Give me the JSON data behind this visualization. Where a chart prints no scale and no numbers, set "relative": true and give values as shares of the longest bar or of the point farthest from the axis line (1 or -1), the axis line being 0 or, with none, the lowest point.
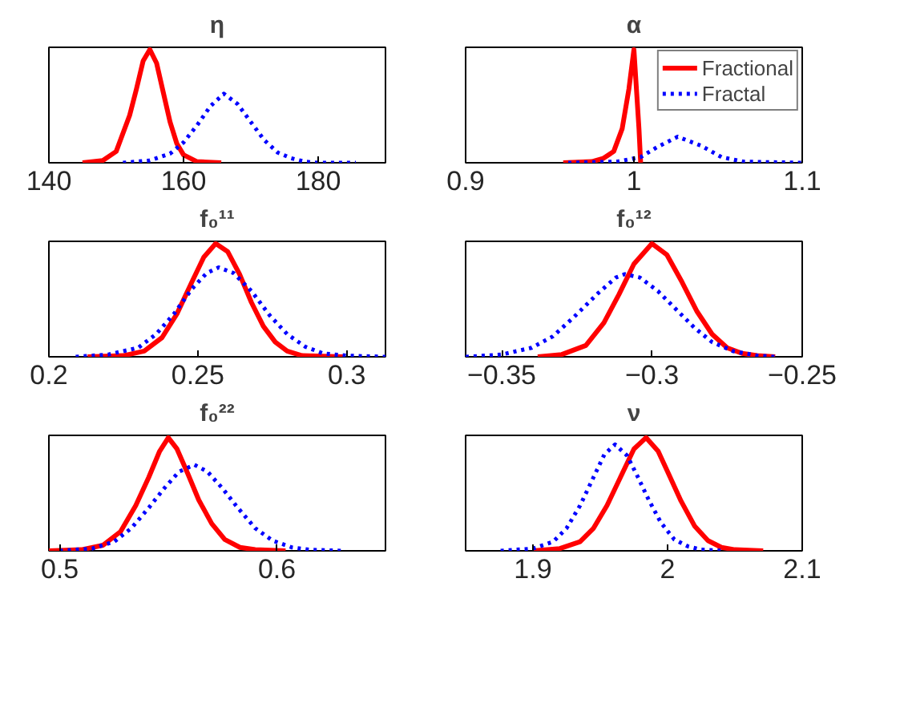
{
  "chart_data": [
    {
      "type": "line",
      "title": "η",
      "relative": true,
      "xlim": [
        140,
        190
      ],
      "xticks": [
        140,
        160,
        180
      ],
      "tick_labels": "x",
      "grid": false,
      "series": [
        {
          "color": "#ff0000",
          "line_style": "solid",
          "x": [
            145,
            148,
            150,
            152,
            153,
            154,
            155,
            156,
            157,
            158,
            159,
            160,
            162,
            165.6
          ],
          "values": [
            0,
            0.02,
            0.1,
            0.42,
            0.65,
            0.9,
            1,
            0.88,
            0.62,
            0.36,
            0.17,
            0.07,
            0.01,
            0
          ]
        },
        {
          "color": "#0000ff",
          "line_style": "dotted",
          "x": [
            151,
            155,
            158,
            160,
            162,
            164,
            166,
            168,
            170,
            172,
            174,
            176,
            178,
            180,
            185.6
          ],
          "values": [
            0,
            0.02,
            0.08,
            0.18,
            0.33,
            0.5,
            0.61,
            0.52,
            0.36,
            0.2,
            0.09,
            0.04,
            0.01,
            0,
            0
          ]
        }
      ]
    },
    {
      "type": "line",
      "title": "α",
      "relative": true,
      "xlim": [
        0.9,
        1.1
      ],
      "xticks": [
        0.9,
        1,
        1.1
      ],
      "tick_labels": "x",
      "grid": false,
      "legend": "top right",
      "series": [
        {
          "name": "Fractional",
          "color": "#ff0000",
          "line_style": "solid",
          "x": [
            0.958,
            0.975,
            0.982,
            0.988,
            0.993,
            0.997,
            1.0,
            1.003,
            1.004
          ],
          "values": [
            0,
            0.01,
            0.04,
            0.1,
            0.3,
            0.65,
            1,
            0.3,
            0
          ]
        },
        {
          "name": "Fractal",
          "color": "#0000ff",
          "line_style": "dotted",
          "x": [
            0.961,
            0.99,
            1.004,
            1.014,
            1.026,
            1.04,
            1.052,
            1.065,
            1.1
          ],
          "values": [
            0,
            0.01,
            0.05,
            0.14,
            0.23,
            0.15,
            0.05,
            0.01,
            0
          ]
        }
      ]
    },
    {
      "type": "line",
      "title": "f₀¹¹",
      "relative": true,
      "xlim": [
        0.2,
        0.313
      ],
      "xticks": [
        0.2,
        0.25,
        0.3
      ],
      "tick_labels": "x",
      "grid": false,
      "series": [
        {
          "color": "#ff0000",
          "line_style": "solid",
          "x": [
            0.213,
            0.225,
            0.232,
            0.238,
            0.243,
            0.248,
            0.252,
            0.256,
            0.26,
            0.264,
            0.268,
            0.272,
            0.276,
            0.28,
            0.285,
            0.299
          ],
          "values": [
            0,
            0.01,
            0.05,
            0.17,
            0.38,
            0.66,
            0.88,
            1,
            0.93,
            0.73,
            0.48,
            0.27,
            0.13,
            0.05,
            0.01,
            0
          ]
        },
        {
          "color": "#0000ff",
          "line_style": "dotted",
          "x": [
            0.209,
            0.22,
            0.23,
            0.236,
            0.242,
            0.248,
            0.253,
            0.257,
            0.262,
            0.268,
            0.274,
            0.28,
            0.286,
            0.292,
            0.3,
            0.313
          ],
          "values": [
            0,
            0.02,
            0.08,
            0.2,
            0.38,
            0.6,
            0.74,
            0.79,
            0.74,
            0.58,
            0.37,
            0.2,
            0.09,
            0.03,
            0.01,
            0
          ]
        }
      ]
    },
    {
      "type": "line",
      "title": "f₀¹²",
      "relative": true,
      "xlim": [
        -0.362,
        -0.25
      ],
      "xticks": [
        -0.35,
        -0.3,
        -0.25
      ],
      "tick_labels": "x",
      "grid": false,
      "series": [
        {
          "color": "#ff0000",
          "line_style": "solid",
          "x": [
            -0.338,
            -0.33,
            -0.322,
            -0.316,
            -0.311,
            -0.306,
            -0.3,
            -0.295,
            -0.29,
            -0.285,
            -0.28,
            -0.275,
            -0.27,
            -0.265,
            -0.259
          ],
          "values": [
            0,
            0.02,
            0.1,
            0.3,
            0.55,
            0.82,
            1,
            0.9,
            0.66,
            0.4,
            0.2,
            0.08,
            0.03,
            0.01,
            0
          ]
        },
        {
          "color": "#0000ff",
          "line_style": "dotted",
          "x": [
            -0.362,
            -0.35,
            -0.34,
            -0.333,
            -0.326,
            -0.318,
            -0.312,
            -0.309,
            -0.304,
            -0.298,
            -0.292,
            -0.286,
            -0.28,
            -0.273,
            -0.265,
            -0.259
          ],
          "values": [
            0,
            0.02,
            0.08,
            0.18,
            0.35,
            0.56,
            0.7,
            0.73,
            0.7,
            0.58,
            0.42,
            0.26,
            0.13,
            0.05,
            0.01,
            0
          ]
        }
      ]
    },
    {
      "type": "line",
      "title": "f₀²²",
      "relative": true,
      "xlim": [
        0.495,
        0.65
      ],
      "xticks": [
        0.5,
        0.6
      ],
      "tick_labels": "x",
      "grid": false,
      "series": [
        {
          "color": "#ff0000",
          "line_style": "solid",
          "x": [
            0.495,
            0.51,
            0.52,
            0.528,
            0.535,
            0.541,
            0.546,
            0.55,
            0.554,
            0.559,
            0.564,
            0.57,
            0.576,
            0.583,
            0.59,
            0.604
          ],
          "values": [
            0,
            0.01,
            0.05,
            0.17,
            0.4,
            0.65,
            0.88,
            1,
            0.9,
            0.68,
            0.45,
            0.24,
            0.1,
            0.03,
            0.01,
            0
          ]
        },
        {
          "color": "#0000ff",
          "line_style": "dotted",
          "x": [
            0.5,
            0.515,
            0.525,
            0.533,
            0.541,
            0.548,
            0.555,
            0.562,
            0.568,
            0.575,
            0.582,
            0.59,
            0.598,
            0.607,
            0.615,
            0.63
          ],
          "values": [
            0,
            0.02,
            0.08,
            0.2,
            0.38,
            0.55,
            0.7,
            0.76,
            0.7,
            0.55,
            0.38,
            0.2,
            0.09,
            0.03,
            0.01,
            0
          ]
        }
      ]
    },
    {
      "type": "line",
      "title": "ν",
      "relative": true,
      "xlim": [
        1.85,
        2.1
      ],
      "xticks": [
        1.9,
        2,
        2.1
      ],
      "tick_labels": "x",
      "grid": false,
      "series": [
        {
          "color": "#ff0000",
          "line_style": "solid",
          "x": [
            1.9,
            1.92,
            1.935,
            1.945,
            1.955,
            1.965,
            1.975,
            1.984,
            1.993,
            2.0,
            2.01,
            2.02,
            2.03,
            2.04,
            2.05,
            2.071
          ],
          "values": [
            0,
            0.02,
            0.08,
            0.2,
            0.4,
            0.65,
            0.9,
            1,
            0.88,
            0.7,
            0.44,
            0.22,
            0.09,
            0.03,
            0.01,
            0
          ]
        },
        {
          "color": "#0000ff",
          "line_style": "dotted",
          "x": [
            1.876,
            1.9,
            1.915,
            1.925,
            1.935,
            1.945,
            1.953,
            1.961,
            1.97,
            1.978,
            1.986,
            1.995,
            2.005,
            2.015,
            2.025,
            2.042
          ],
          "values": [
            0,
            0.02,
            0.08,
            0.2,
            0.4,
            0.65,
            0.85,
            0.94,
            0.84,
            0.65,
            0.45,
            0.25,
            0.1,
            0.04,
            0.01,
            0
          ]
        }
      ]
    }
  ]
}
